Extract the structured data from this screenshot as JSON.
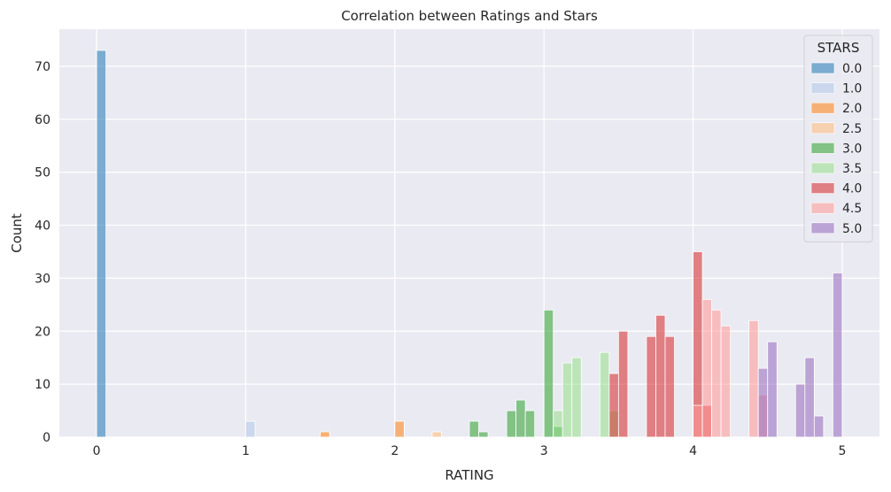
{
  "chart_data": {
    "type": "bar",
    "title": "Correlation between Ratings and Stars",
    "xlabel": "RATING",
    "ylabel": "Count",
    "xlim": [
      -0.25,
      5.25
    ],
    "ylim": [
      0,
      77
    ],
    "x_ticks": [
      0,
      1,
      2,
      3,
      4,
      5
    ],
    "y_ticks": [
      0,
      10,
      20,
      30,
      40,
      50,
      60,
      70
    ],
    "grid": true,
    "legend_title": "STARS",
    "legend_position": "top-right",
    "bin_width": 0.0625,
    "series": [
      {
        "name": "0.0",
        "color": "#1f77b4",
        "x": [
          0.0
        ],
        "values": [
          73
        ]
      },
      {
        "name": "1.0",
        "color": "#aec7e8",
        "x": [
          1.0
        ],
        "values": [
          3
        ]
      },
      {
        "name": "2.0",
        "color": "#ff7f0e",
        "x": [
          1.5,
          2.0
        ],
        "values": [
          1,
          3
        ]
      },
      {
        "name": "2.5",
        "color": "#ffbb78",
        "x": [
          2.25
        ],
        "values": [
          1
        ]
      },
      {
        "name": "3.0",
        "color": "#2ca02c",
        "x": [
          2.5,
          2.5625,
          2.75,
          2.8125,
          2.875,
          3.0,
          3.0625
        ],
        "values": [
          3,
          1,
          5,
          7,
          5,
          24,
          2
        ]
      },
      {
        "name": "3.5",
        "color": "#98df8a",
        "x": [
          3.0625,
          3.125,
          3.1875,
          3.375,
          3.4375
        ],
        "values": [
          5,
          14,
          15,
          16,
          5
        ]
      },
      {
        "name": "4.0",
        "color": "#d62728",
        "x": [
          3.4375,
          3.5,
          3.6875,
          3.75,
          3.8125,
          4.0,
          4.0625
        ],
        "values": [
          12,
          20,
          19,
          23,
          19,
          35,
          6
        ]
      },
      {
        "name": "4.5",
        "color": "#ff9896",
        "x": [
          4.0,
          4.0625,
          4.125,
          4.1875,
          4.375,
          4.4375
        ],
        "values": [
          6,
          26,
          24,
          21,
          22,
          8
        ]
      },
      {
        "name": "5.0",
        "color": "#9467bd",
        "x": [
          4.4375,
          4.5,
          4.6875,
          4.75,
          4.8125,
          4.9375
        ],
        "values": [
          13,
          18,
          10,
          15,
          4,
          31
        ]
      }
    ]
  }
}
